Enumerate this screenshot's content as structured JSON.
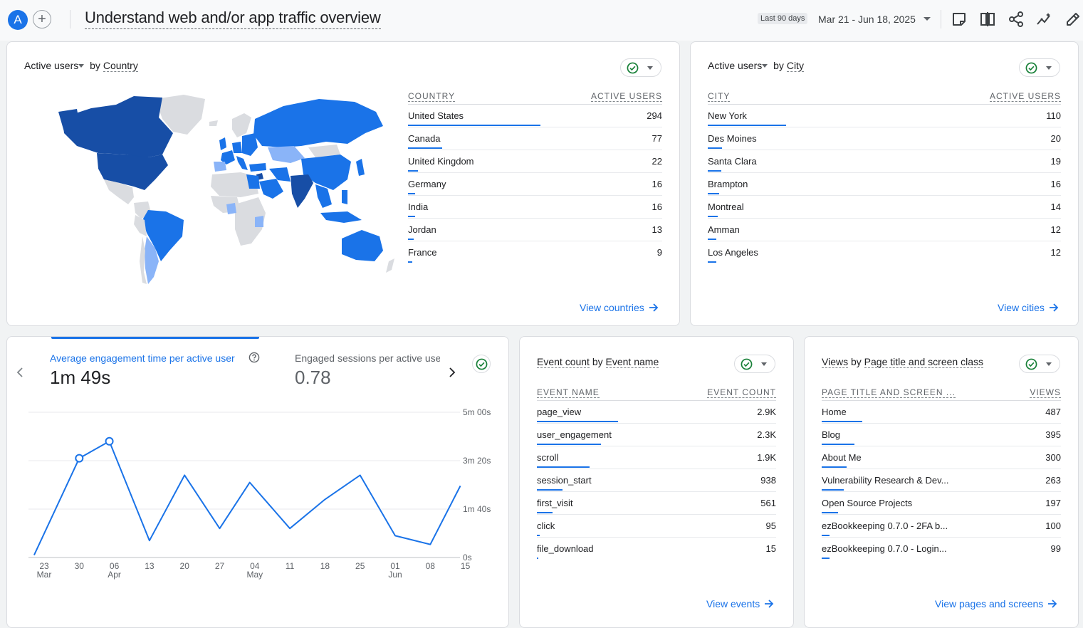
{
  "header": {
    "avatar_letter": "A",
    "add_label": "+",
    "title": "Understand web and/or app traffic overview",
    "date_badge": "Last 90 days",
    "date_range": "Mar 21 - Jun 18, 2025",
    "icons": [
      "note-icon",
      "compare-icon",
      "share-icon",
      "insights-icon",
      "edit-icon"
    ]
  },
  "country_card": {
    "metric": "Active users",
    "by": "by",
    "dimension": "Country",
    "col_left": "COUNTRY",
    "col_right": "ACTIVE USERS",
    "rows": [
      {
        "name": "United States",
        "value": "294",
        "fraction": 1.0
      },
      {
        "name": "Canada",
        "value": "77",
        "fraction": 0.26
      },
      {
        "name": "United Kingdom",
        "value": "22",
        "fraction": 0.075
      },
      {
        "name": "Germany",
        "value": "16",
        "fraction": 0.055
      },
      {
        "name": "India",
        "value": "16",
        "fraction": 0.055
      },
      {
        "name": "Jordan",
        "value": "13",
        "fraction": 0.045
      },
      {
        "name": "France",
        "value": "9",
        "fraction": 0.03
      }
    ],
    "view_link": "View countries"
  },
  "city_card": {
    "metric": "Active users",
    "by": "by",
    "dimension": "City",
    "col_left": "CITY",
    "col_right": "ACTIVE USERS",
    "rows": [
      {
        "name": "New York",
        "value": "110",
        "fraction": 1.0
      },
      {
        "name": "Des Moines",
        "value": "20",
        "fraction": 0.18
      },
      {
        "name": "Santa Clara",
        "value": "19",
        "fraction": 0.17
      },
      {
        "name": "Brampton",
        "value": "16",
        "fraction": 0.145
      },
      {
        "name": "Montreal",
        "value": "14",
        "fraction": 0.13
      },
      {
        "name": "Amman",
        "value": "12",
        "fraction": 0.11
      },
      {
        "name": "Los Angeles",
        "value": "12",
        "fraction": 0.11
      }
    ],
    "view_link": "View cities"
  },
  "engagement_card": {
    "tab1_label": "Average engagement time per active user",
    "tab1_value": "1m 49s",
    "tab2_label": "Engaged sessions per active user",
    "tab2_value": "0.78"
  },
  "chart_data": {
    "type": "line",
    "title": "",
    "y_ticks": [
      "5m 00s",
      "3m 20s",
      "1m 40s",
      "0s"
    ],
    "ylim": [
      0,
      300
    ],
    "x_ticks": [
      {
        "day": "23",
        "month": "Mar"
      },
      {
        "day": "30",
        "month": ""
      },
      {
        "day": "06",
        "month": "Apr"
      },
      {
        "day": "13",
        "month": ""
      },
      {
        "day": "20",
        "month": ""
      },
      {
        "day": "27",
        "month": ""
      },
      {
        "day": "04",
        "month": "May"
      },
      {
        "day": "11",
        "month": ""
      },
      {
        "day": "18",
        "month": ""
      },
      {
        "day": "25",
        "month": ""
      },
      {
        "day": "01",
        "month": "Jun"
      },
      {
        "day": "08",
        "month": ""
      },
      {
        "day": "15",
        "month": ""
      }
    ],
    "series": [
      {
        "x": [
          "2025-03-21",
          "2025-03-30",
          "2025-04-05",
          "2025-04-13",
          "2025-04-20",
          "2025-04-27",
          "2025-05-03",
          "2025-05-11",
          "2025-05-18",
          "2025-05-25",
          "2025-06-01",
          "2025-06-08",
          "2025-06-14"
        ],
        "values": [
          5,
          205,
          240,
          35,
          170,
          60,
          155,
          60,
          120,
          170,
          45,
          27,
          148
        ],
        "markers": [
          false,
          true,
          true,
          false,
          false,
          false,
          false,
          false,
          false,
          false,
          false,
          false,
          false
        ]
      }
    ],
    "grid": true,
    "line_color": "#1a73e8"
  },
  "event_card": {
    "metric": "Event count",
    "by": "by",
    "dimension": "Event name",
    "col_left": "EVENT NAME",
    "col_right": "EVENT COUNT",
    "rows": [
      {
        "name": "page_view",
        "value": "2.9K",
        "fraction": 1.0
      },
      {
        "name": "user_engagement",
        "value": "2.3K",
        "fraction": 0.79
      },
      {
        "name": "scroll",
        "value": "1.9K",
        "fraction": 0.65
      },
      {
        "name": "session_start",
        "value": "938",
        "fraction": 0.32
      },
      {
        "name": "first_visit",
        "value": "561",
        "fraction": 0.19
      },
      {
        "name": "click",
        "value": "95",
        "fraction": 0.033
      },
      {
        "name": "file_download",
        "value": "15",
        "fraction": 0.006
      }
    ],
    "view_link": "View events"
  },
  "views_card": {
    "metric": "Views",
    "by": "by",
    "dimension": "Page title and screen class",
    "col_left": "PAGE TITLE AND SCREEN ...",
    "col_right": "VIEWS",
    "rows": [
      {
        "name": "Home",
        "value": "487",
        "fraction": 1.0
      },
      {
        "name": "Blog",
        "value": "395",
        "fraction": 0.81
      },
      {
        "name": "About Me",
        "value": "300",
        "fraction": 0.62
      },
      {
        "name": "Vulnerability Research & Dev...",
        "value": "263",
        "fraction": 0.54
      },
      {
        "name": "Open Source Projects",
        "value": "197",
        "fraction": 0.4
      },
      {
        "name": "ezBookkeeping 0.7.0 - 2FA b...",
        "value": "100",
        "fraction": 0.2
      },
      {
        "name": "ezBookkeeping 0.7.0 - Login...",
        "value": "99",
        "fraction": 0.2
      }
    ],
    "view_link": "View pages and screens"
  },
  "colors": {
    "accent": "#1a73e8",
    "map_dark": "#174ea6",
    "map_mid": "#1a73e8",
    "map_light": "#8ab4f8",
    "map_none": "#dadce0",
    "check_green": "#188038"
  }
}
